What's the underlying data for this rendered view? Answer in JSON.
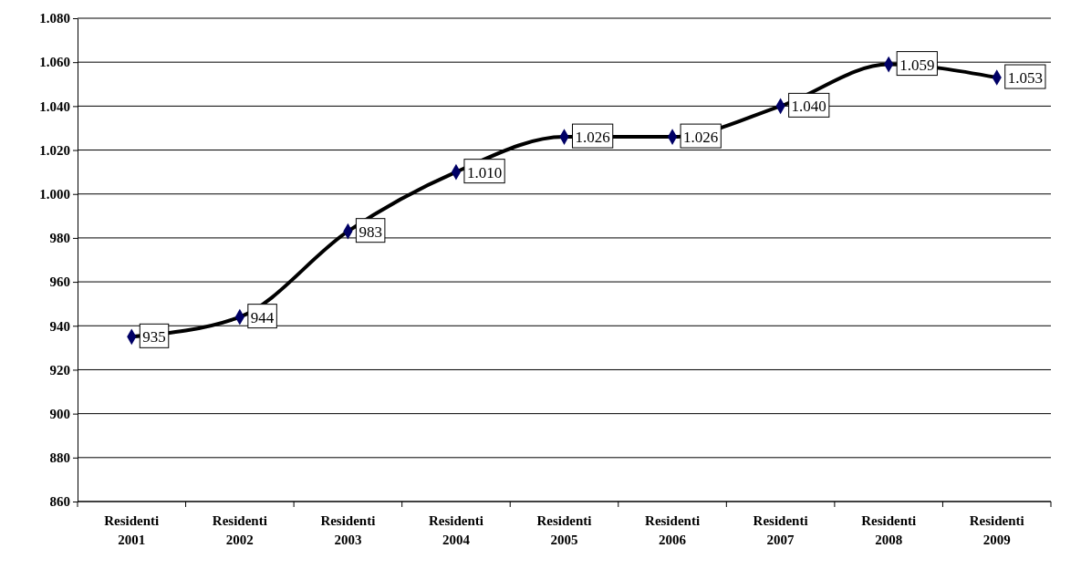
{
  "chart_data": {
    "type": "line",
    "categories": [
      "Residenti 2001",
      "Residenti 2002",
      "Residenti 2003",
      "Residenti 2004",
      "Residenti 2005",
      "Residenti 2006",
      "Residenti 2007",
      "Residenti 2008",
      "Residenti 2009"
    ],
    "series": [
      {
        "color": "#000066",
        "values": [
          935,
          944,
          983,
          1010,
          1026,
          1026,
          1040,
          1059,
          1053
        ],
        "value_labels": [
          "935",
          "944",
          "983",
          "1.010",
          "1.026",
          "1.026",
          "1.040",
          "1.059",
          "1.053"
        ]
      }
    ],
    "ylim": [
      860,
      1080
    ],
    "yticks": [
      860,
      880,
      900,
      920,
      940,
      960,
      980,
      {
        "value": 1000,
        "label": "1.000"
      },
      {
        "value": 1020,
        "label": "1.020"
      },
      {
        "value": 1040,
        "label": "1.040"
      },
      {
        "value": 1060,
        "label": "1.060"
      },
      {
        "value": 1080,
        "label": "1.080"
      }
    ],
    "grid": "y",
    "marker": "diamond",
    "line_style": "solid"
  }
}
